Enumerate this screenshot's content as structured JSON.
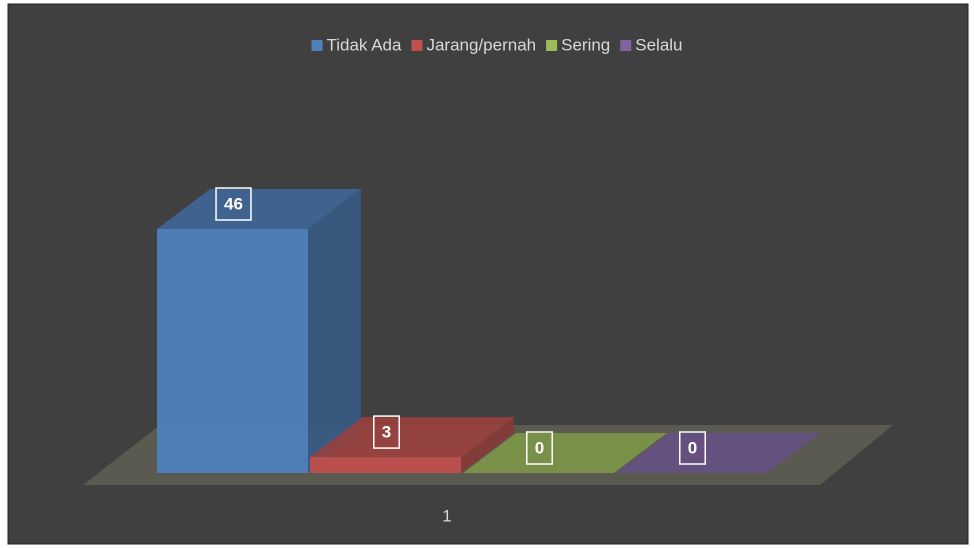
{
  "chart_data": {
    "type": "bar3d",
    "categories": [
      "1"
    ],
    "series": [
      {
        "name": "Tidak Ada",
        "color": "#4f81bd",
        "values": [
          46
        ]
      },
      {
        "name": "Jarang/pernah",
        "color": "#c0504d",
        "values": [
          3
        ]
      },
      {
        "name": "Sering",
        "color": "#9bbb59",
        "values": [
          0
        ]
      },
      {
        "name": "Selalu",
        "color": "#8064a2",
        "values": [
          0
        ]
      }
    ],
    "legend": "top"
  }
}
